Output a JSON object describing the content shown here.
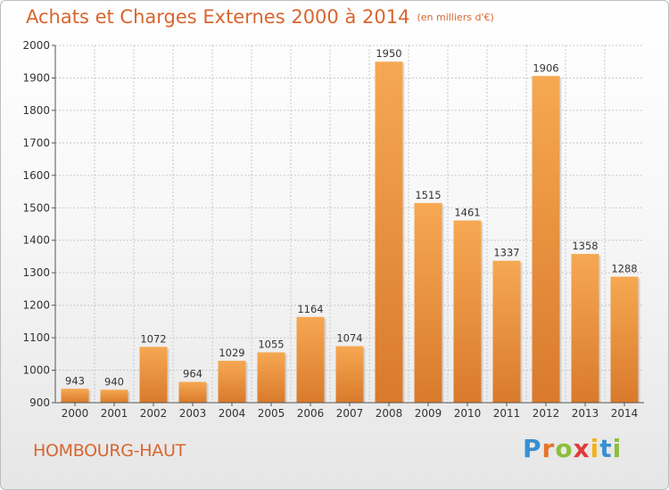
{
  "header": {
    "title": "Achats et Charges Externes 2000 à 2014",
    "unit": "(en milliers d'€)"
  },
  "footer": {
    "commune": "HOMBOURG-HAUT",
    "logo_letters": [
      "P",
      "r",
      "o",
      "x",
      "i",
      "t",
      "i"
    ],
    "logo_colors": [
      "#3a8fd0",
      "#e8742a",
      "#8bbf3c",
      "#e33b3b",
      "#f2b41c",
      "#3a8fd0",
      "#8bbf3c"
    ]
  },
  "colors": {
    "bar_light": "#f6a852",
    "bar_dark": "#d97a2c",
    "grid": "#c8c8c8",
    "axis_text": "#333333",
    "title": "#d8652f"
  },
  "chart_data": {
    "type": "bar",
    "title": "Achats et Charges Externes 2000 à 2014",
    "subtitle": "(en milliers d'€)",
    "categories": [
      "2000",
      "2001",
      "2002",
      "2003",
      "2004",
      "2005",
      "2006",
      "2007",
      "2008",
      "2009",
      "2010",
      "2011",
      "2012",
      "2013",
      "2014"
    ],
    "values": [
      943,
      940,
      1072,
      964,
      1029,
      1055,
      1164,
      1074,
      1950,
      1515,
      1461,
      1337,
      1906,
      1358,
      1288
    ],
    "value_labels": [
      "943",
      "940",
      "1072",
      "964",
      "1029",
      "1055",
      "1164",
      "1074",
      "1950",
      "1515",
      "1461",
      "1337",
      "1906",
      "1358",
      "1288"
    ],
    "ylim": [
      900,
      2000
    ],
    "yticks": [
      900,
      1000,
      1100,
      1200,
      1300,
      1400,
      1500,
      1600,
      1700,
      1800,
      1900,
      2000
    ],
    "grid": true,
    "xlabel": "",
    "ylabel": ""
  }
}
